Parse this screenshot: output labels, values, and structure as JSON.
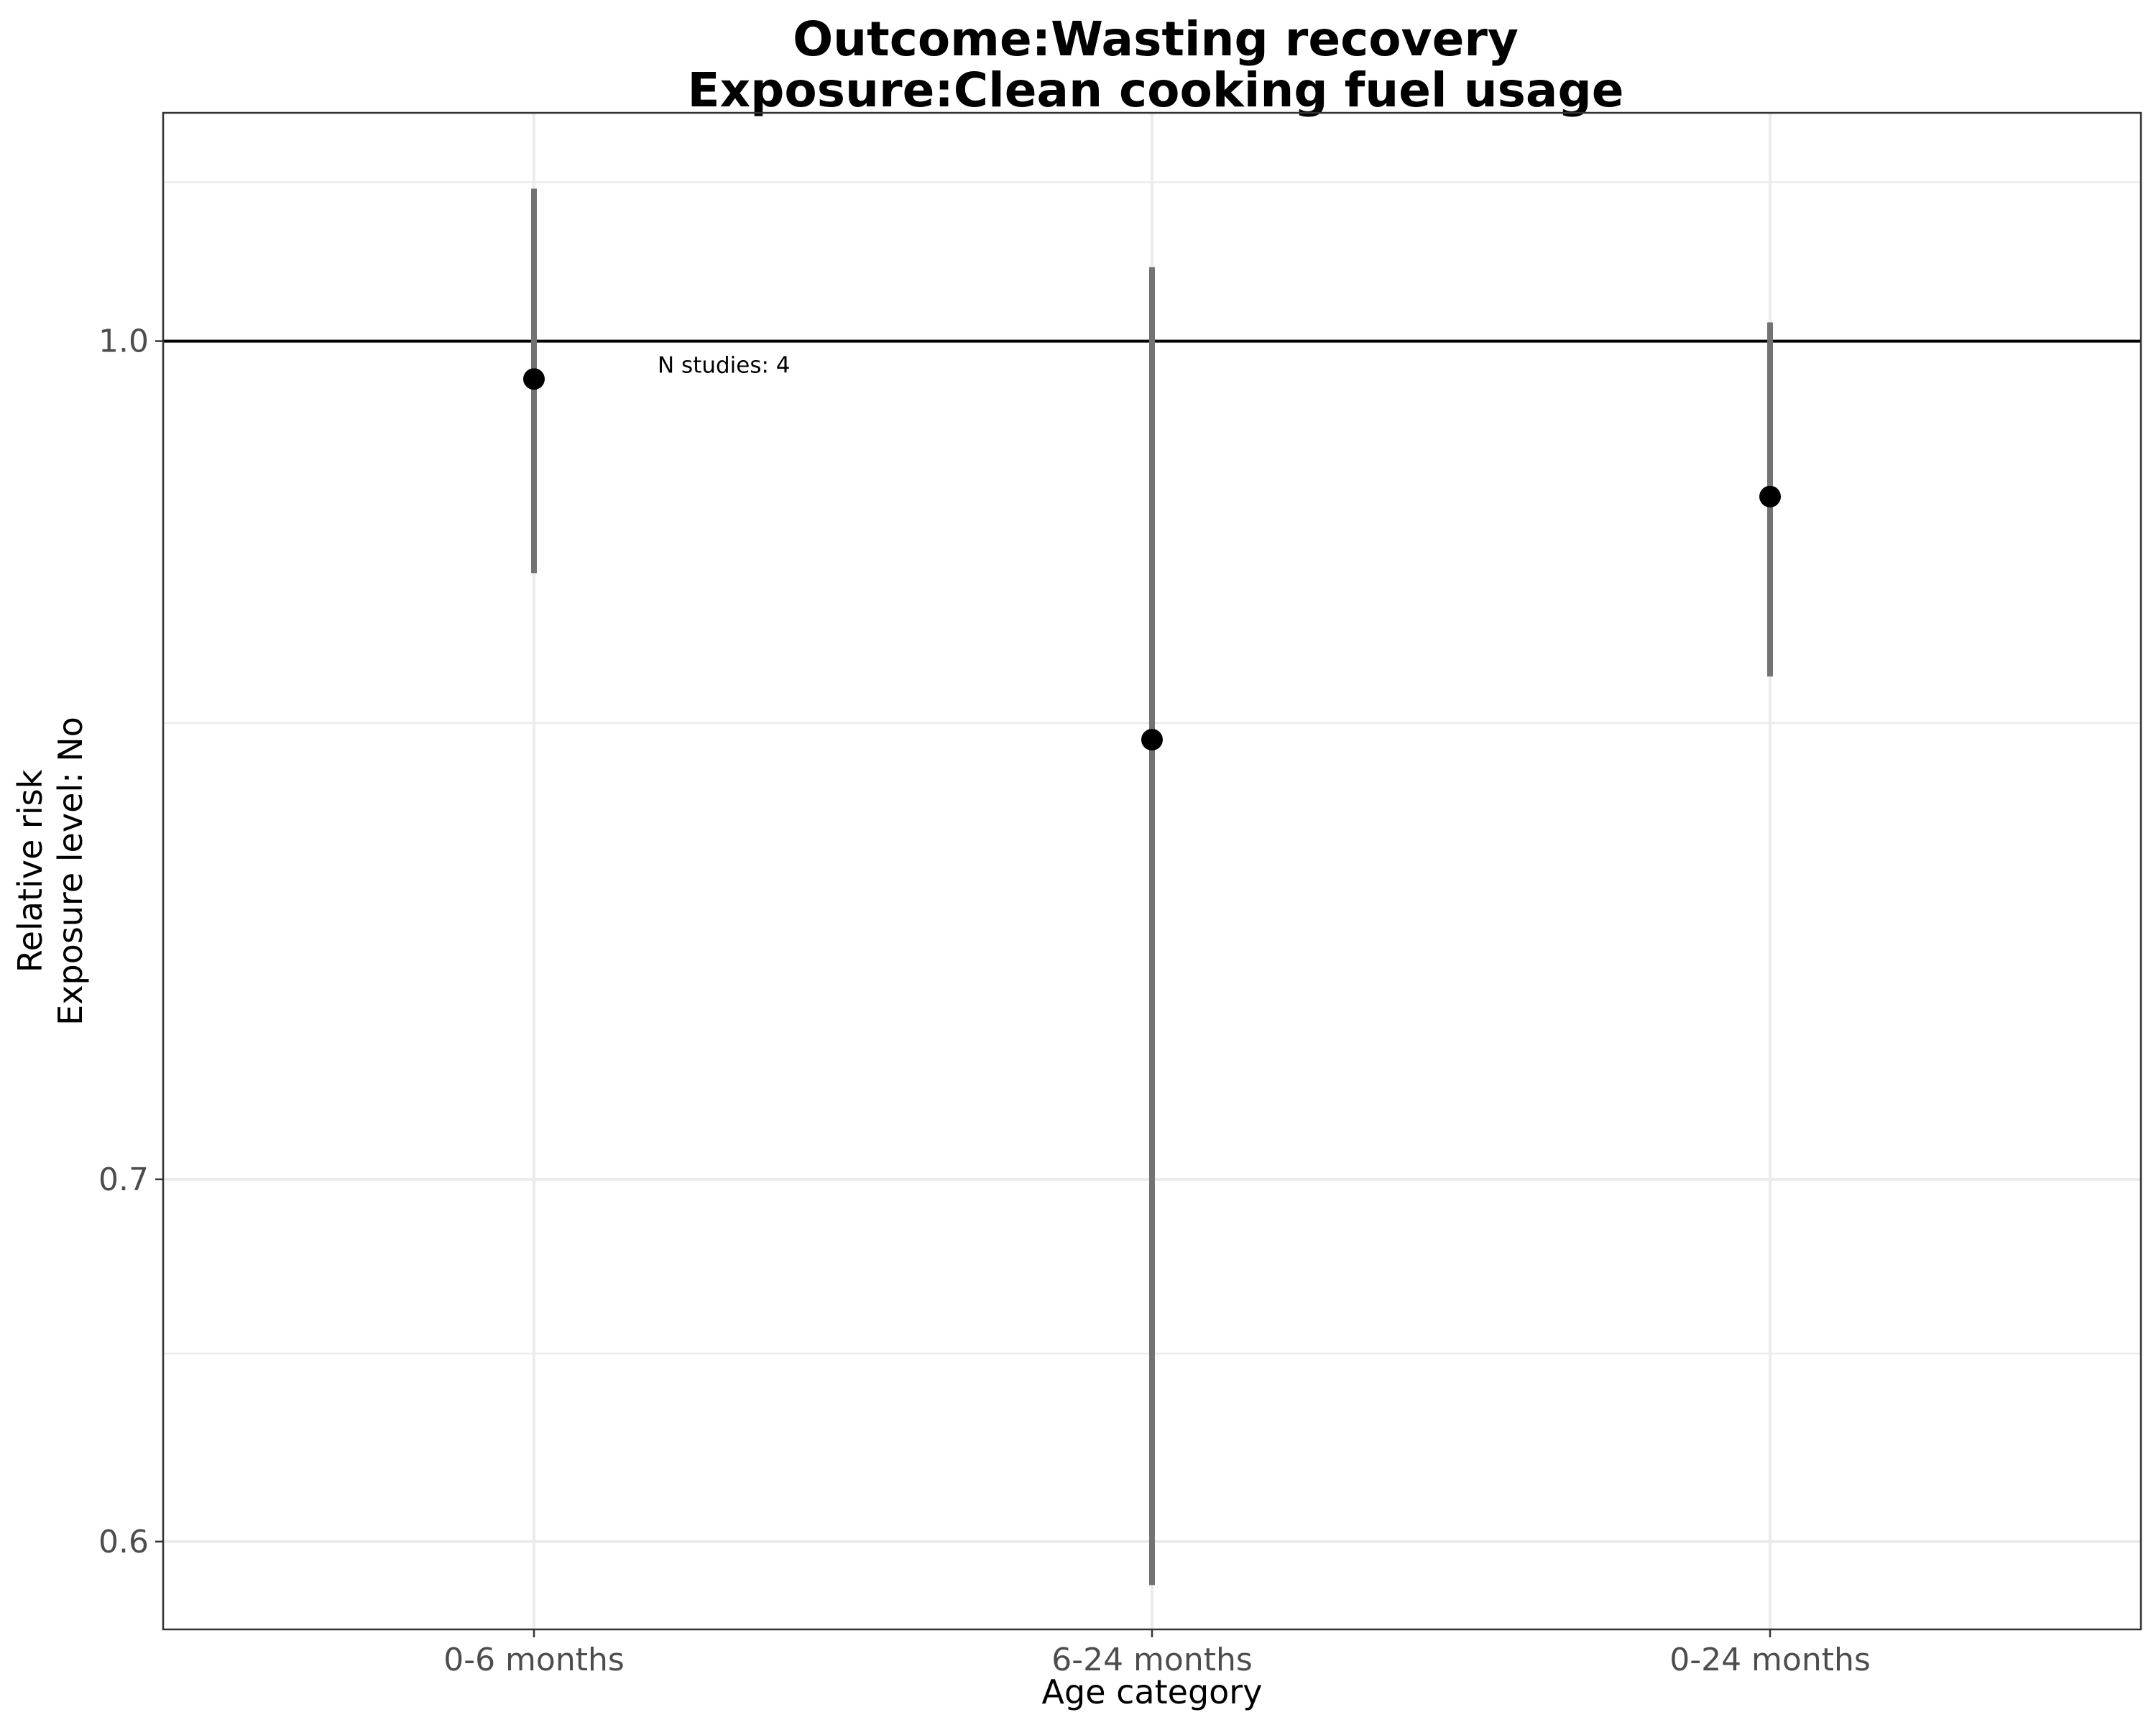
{
  "chart_data": {
    "type": "scatter",
    "title_lines": [
      "Outcome:Wasting recovery",
      "Exposure:Clean cooking fuel usage"
    ],
    "xlabel": "Age category",
    "ylabel_lines": [
      "Relative risk",
      "Exposure level: No"
    ],
    "categories": [
      "0-6 months",
      "6-24 months",
      "0-24 months"
    ],
    "series": [
      {
        "estimate": [
          0.984,
          0.844,
          0.936
        ],
        "ci_lower": [
          0.906,
          0.589,
          0.867
        ],
        "ci_upper": [
          1.067,
          1.032,
          1.008
        ]
      }
    ],
    "y_scale": "log",
    "ylim": [
      0.578,
      1.102
    ],
    "y_ticks": [
      0.6,
      0.7,
      1.0
    ],
    "y_tick_labels": [
      "0.6",
      "0.7",
      "1.0"
    ],
    "y_minor_ticks": [
      0.65,
      0.85,
      1.07
    ],
    "reference_line": 1.0,
    "grid": true,
    "annotations": [
      {
        "text": "N studies: 4",
        "category": "0-6 months",
        "y": 0.99
      }
    ],
    "colors": {
      "point": "#000000",
      "errorbar": "#737373",
      "reference": "#000000"
    }
  }
}
